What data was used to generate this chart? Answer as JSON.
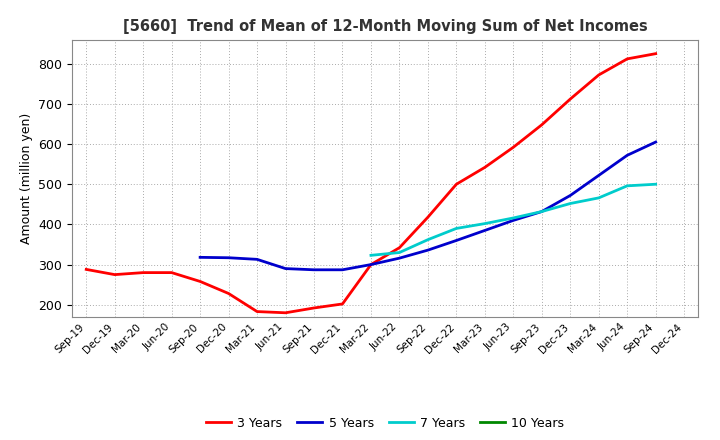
{
  "title": "[5660]  Trend of Mean of 12-Month Moving Sum of Net Incomes",
  "ylabel": "Amount (million yen)",
  "background_color": "#ffffff",
  "grid_color": "#aaaaaa",
  "x_labels": [
    "Sep-19",
    "Dec-19",
    "Mar-20",
    "Jun-20",
    "Sep-20",
    "Dec-20",
    "Mar-21",
    "Jun-21",
    "Sep-21",
    "Dec-21",
    "Mar-22",
    "Jun-22",
    "Sep-22",
    "Dec-22",
    "Mar-23",
    "Jun-23",
    "Sep-23",
    "Dec-23",
    "Mar-24",
    "Jun-24",
    "Sep-24",
    "Dec-24"
  ],
  "ylim": [
    170,
    860
  ],
  "yticks": [
    200,
    300,
    400,
    500,
    600,
    700,
    800
  ],
  "series": {
    "3 Years": {
      "color": "#ff0000",
      "data_x": [
        0,
        1,
        2,
        3,
        4,
        5,
        6,
        7,
        8,
        9,
        10,
        11,
        12,
        13,
        14,
        15,
        16,
        17,
        18,
        19,
        20
      ],
      "data_y": [
        288,
        275,
        280,
        280,
        258,
        228,
        183,
        180,
        192,
        202,
        300,
        342,
        418,
        500,
        542,
        592,
        648,
        712,
        772,
        812,
        825
      ]
    },
    "5 Years": {
      "color": "#0000cc",
      "data_x": [
        4,
        5,
        6,
        7,
        8,
        9,
        10,
        11,
        12,
        13,
        14,
        15,
        16,
        17,
        18,
        19,
        20
      ],
      "data_y": [
        318,
        317,
        313,
        290,
        287,
        287,
        300,
        316,
        336,
        360,
        385,
        410,
        432,
        472,
        522,
        572,
        605
      ]
    },
    "7 Years": {
      "color": "#00cccc",
      "data_x": [
        10,
        11,
        12,
        13,
        14,
        15,
        16,
        17,
        18,
        19,
        20
      ],
      "data_y": [
        323,
        330,
        362,
        390,
        402,
        416,
        432,
        452,
        466,
        496,
        500
      ]
    },
    "10 Years": {
      "color": "#008800",
      "data_x": [],
      "data_y": []
    }
  },
  "legend_entries": [
    "3 Years",
    "5 Years",
    "7 Years",
    "10 Years"
  ],
  "legend_colors": [
    "#ff0000",
    "#0000cc",
    "#00cccc",
    "#008800"
  ]
}
